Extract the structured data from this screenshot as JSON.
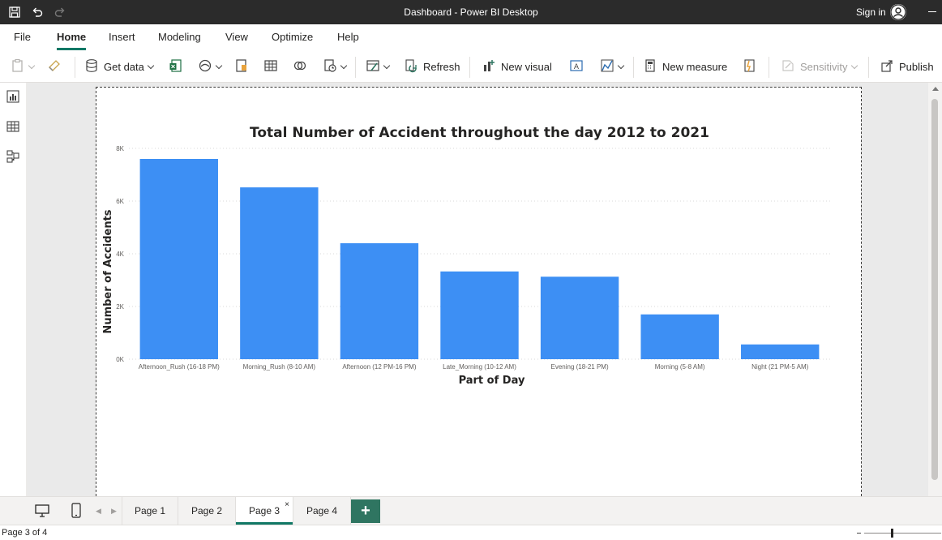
{
  "window": {
    "title": "Dashboard - Power BI Desktop",
    "sign_in": "Sign in"
  },
  "menu": {
    "tabs": [
      "File",
      "Home",
      "Insert",
      "Modeling",
      "View",
      "Optimize",
      "Help"
    ],
    "active": "Home"
  },
  "ribbon": {
    "get_data": "Get data",
    "refresh": "Refresh",
    "new_visual": "New visual",
    "new_measure": "New measure",
    "sensitivity": "Sensitivity",
    "publish": "Publish"
  },
  "chart_data": {
    "type": "bar",
    "title": "Total Number of Accident throughout the day 2012 to 2021",
    "xlabel": "Part of Day",
    "ylabel": "Number of Accidents",
    "categories": [
      "Afternoon_Rush (16-18 PM)",
      "Morning_Rush (8-10 AM)",
      "Afternoon (12 PM-16 PM)",
      "Late_Morning (10-12 AM)",
      "Evening (18-21 PM)",
      "Morning (5-8 AM)",
      "Night (21 PM-5 AM)"
    ],
    "values": [
      7600,
      6520,
      4400,
      3330,
      3130,
      1700,
      560
    ],
    "ylim": [
      0,
      8000
    ],
    "yticks": [
      0,
      2000,
      4000,
      6000,
      8000
    ],
    "ytick_labels": [
      "0K",
      "2K",
      "4K",
      "6K",
      "8K"
    ],
    "grid": true,
    "bar_color": "#3d8ff4"
  },
  "pages": {
    "tabs": [
      "Page 1",
      "Page 2",
      "Page 3",
      "Page 4"
    ],
    "active": "Page 3",
    "add_label": "+",
    "close_label": "×"
  },
  "status": {
    "page_info": "Page 3 of 4"
  },
  "colors": {
    "accent": "#117865",
    "add_page": "#2f7561",
    "titlebar": "#2b2b2b"
  }
}
